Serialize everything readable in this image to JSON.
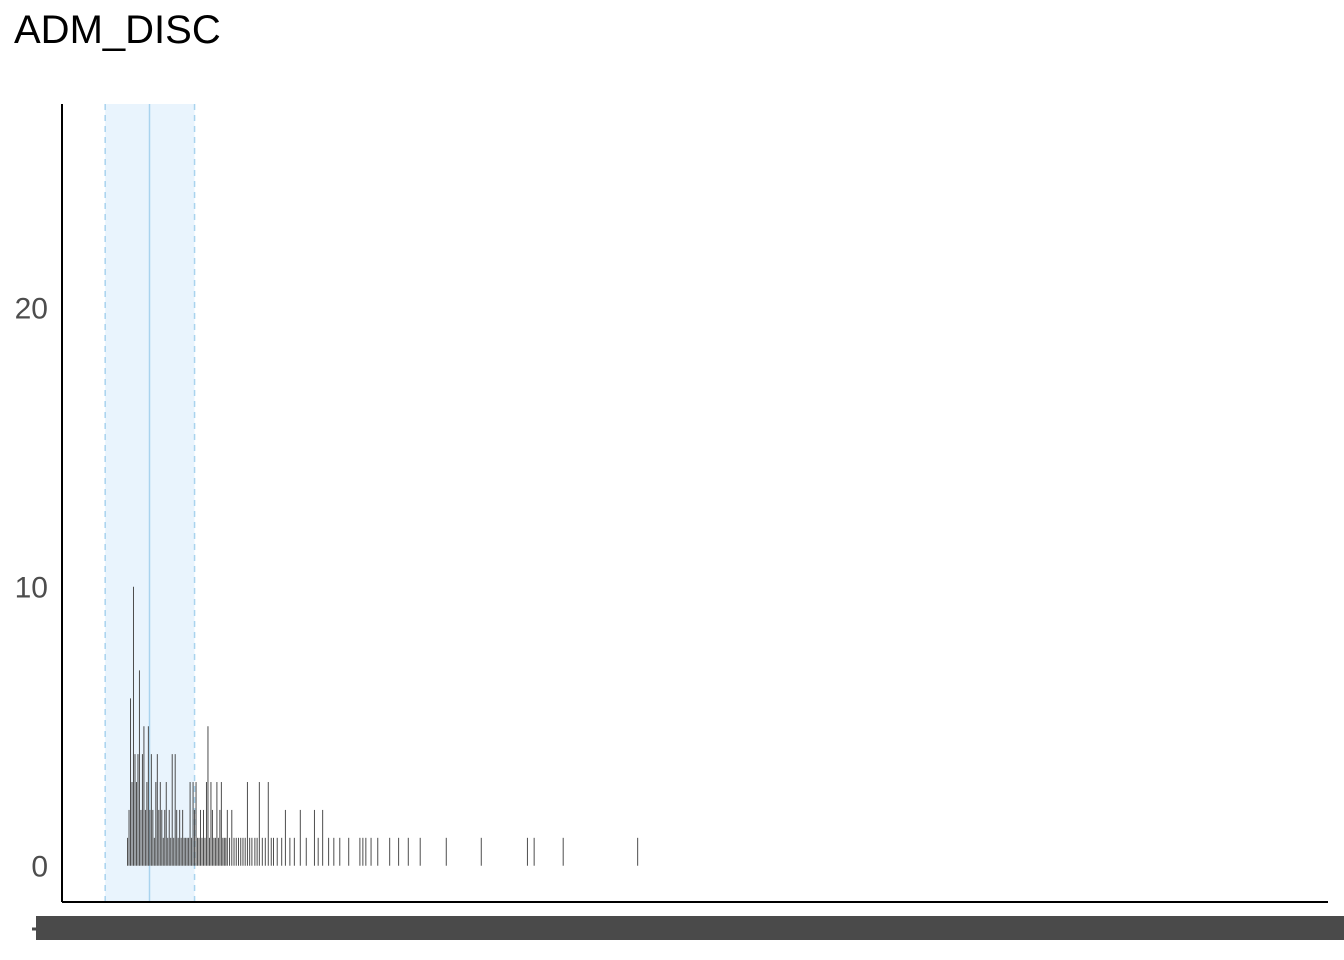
{
  "chart_data": {
    "type": "bar",
    "title": "ADM_DISC",
    "xlabel": "",
    "ylabel": "",
    "ylim": [
      -1.3,
      27.3
    ],
    "y_ticks": [
      0,
      10,
      20
    ],
    "grid": false,
    "x_tick_labels": "dense overlapping labels, illegible",
    "mean_band": {
      "low": 116,
      "mean": 235,
      "high": 356,
      "color": "#e9f4fd",
      "line_color": "#a9d3ee"
    },
    "bar_color": "#4d4d4d",
    "x_range": [
      0,
      3400
    ],
    "bars": [
      {
        "x": 176,
        "y": 1
      },
      {
        "x": 180,
        "y": 2
      },
      {
        "x": 184,
        "y": 6
      },
      {
        "x": 188,
        "y": 3
      },
      {
        "x": 192,
        "y": 10
      },
      {
        "x": 196,
        "y": 4
      },
      {
        "x": 200,
        "y": 3
      },
      {
        "x": 204,
        "y": 4
      },
      {
        "x": 208,
        "y": 7
      },
      {
        "x": 212,
        "y": 2
      },
      {
        "x": 216,
        "y": 4
      },
      {
        "x": 220,
        "y": 5
      },
      {
        "x": 224,
        "y": 2
      },
      {
        "x": 228,
        "y": 3
      },
      {
        "x": 232,
        "y": 5
      },
      {
        "x": 236,
        "y": 2
      },
      {
        "x": 240,
        "y": 4
      },
      {
        "x": 244,
        "y": 2
      },
      {
        "x": 248,
        "y": 1
      },
      {
        "x": 252,
        "y": 3
      },
      {
        "x": 256,
        "y": 4
      },
      {
        "x": 260,
        "y": 2
      },
      {
        "x": 264,
        "y": 3
      },
      {
        "x": 268,
        "y": 2
      },
      {
        "x": 272,
        "y": 1
      },
      {
        "x": 276,
        "y": 2
      },
      {
        "x": 280,
        "y": 3
      },
      {
        "x": 284,
        "y": 1
      },
      {
        "x": 288,
        "y": 2
      },
      {
        "x": 292,
        "y": 1
      },
      {
        "x": 296,
        "y": 4
      },
      {
        "x": 300,
        "y": 1
      },
      {
        "x": 304,
        "y": 4
      },
      {
        "x": 308,
        "y": 2
      },
      {
        "x": 312,
        "y": 1
      },
      {
        "x": 316,
        "y": 2
      },
      {
        "x": 320,
        "y": 1
      },
      {
        "x": 324,
        "y": 2
      },
      {
        "x": 328,
        "y": 1
      },
      {
        "x": 332,
        "y": 1
      },
      {
        "x": 336,
        "y": 1
      },
      {
        "x": 340,
        "y": 1
      },
      {
        "x": 344,
        "y": 3
      },
      {
        "x": 348,
        "y": 1
      },
      {
        "x": 352,
        "y": 3
      },
      {
        "x": 356,
        "y": 2
      },
      {
        "x": 360,
        "y": 3
      },
      {
        "x": 364,
        "y": 1
      },
      {
        "x": 368,
        "y": 1
      },
      {
        "x": 372,
        "y": 2
      },
      {
        "x": 376,
        "y": 1
      },
      {
        "x": 380,
        "y": 2
      },
      {
        "x": 384,
        "y": 1
      },
      {
        "x": 388,
        "y": 3
      },
      {
        "x": 392,
        "y": 5
      },
      {
        "x": 396,
        "y": 1
      },
      {
        "x": 400,
        "y": 3
      },
      {
        "x": 404,
        "y": 2
      },
      {
        "x": 408,
        "y": 1
      },
      {
        "x": 412,
        "y": 1
      },
      {
        "x": 416,
        "y": 3
      },
      {
        "x": 420,
        "y": 1
      },
      {
        "x": 424,
        "y": 2
      },
      {
        "x": 428,
        "y": 3
      },
      {
        "x": 432,
        "y": 1
      },
      {
        "x": 436,
        "y": 1
      },
      {
        "x": 440,
        "y": 1
      },
      {
        "x": 444,
        "y": 2
      },
      {
        "x": 450,
        "y": 1
      },
      {
        "x": 456,
        "y": 2
      },
      {
        "x": 462,
        "y": 1
      },
      {
        "x": 468,
        "y": 1
      },
      {
        "x": 474,
        "y": 1
      },
      {
        "x": 480,
        "y": 1
      },
      {
        "x": 486,
        "y": 1
      },
      {
        "x": 492,
        "y": 1
      },
      {
        "x": 498,
        "y": 3
      },
      {
        "x": 504,
        "y": 1
      },
      {
        "x": 510,
        "y": 1
      },
      {
        "x": 518,
        "y": 1
      },
      {
        "x": 524,
        "y": 1
      },
      {
        "x": 530,
        "y": 3
      },
      {
        "x": 538,
        "y": 1
      },
      {
        "x": 546,
        "y": 1
      },
      {
        "x": 554,
        "y": 3
      },
      {
        "x": 562,
        "y": 1
      },
      {
        "x": 568,
        "y": 1
      },
      {
        "x": 578,
        "y": 1
      },
      {
        "x": 590,
        "y": 1
      },
      {
        "x": 600,
        "y": 2
      },
      {
        "x": 612,
        "y": 1
      },
      {
        "x": 624,
        "y": 1
      },
      {
        "x": 640,
        "y": 2
      },
      {
        "x": 656,
        "y": 1
      },
      {
        "x": 678,
        "y": 2
      },
      {
        "x": 688,
        "y": 1
      },
      {
        "x": 700,
        "y": 2
      },
      {
        "x": 716,
        "y": 1
      },
      {
        "x": 730,
        "y": 1
      },
      {
        "x": 746,
        "y": 1
      },
      {
        "x": 770,
        "y": 1
      },
      {
        "x": 800,
        "y": 1
      },
      {
        "x": 808,
        "y": 1
      },
      {
        "x": 816,
        "y": 1
      },
      {
        "x": 830,
        "y": 1
      },
      {
        "x": 848,
        "y": 1
      },
      {
        "x": 880,
        "y": 1
      },
      {
        "x": 904,
        "y": 1
      },
      {
        "x": 930,
        "y": 1
      },
      {
        "x": 962,
        "y": 1
      },
      {
        "x": 1032,
        "y": 1
      },
      {
        "x": 1126,
        "y": 1
      },
      {
        "x": 1250,
        "y": 1
      },
      {
        "x": 1268,
        "y": 1
      },
      {
        "x": 1346,
        "y": 1
      },
      {
        "x": 1546,
        "y": 1
      }
    ]
  }
}
